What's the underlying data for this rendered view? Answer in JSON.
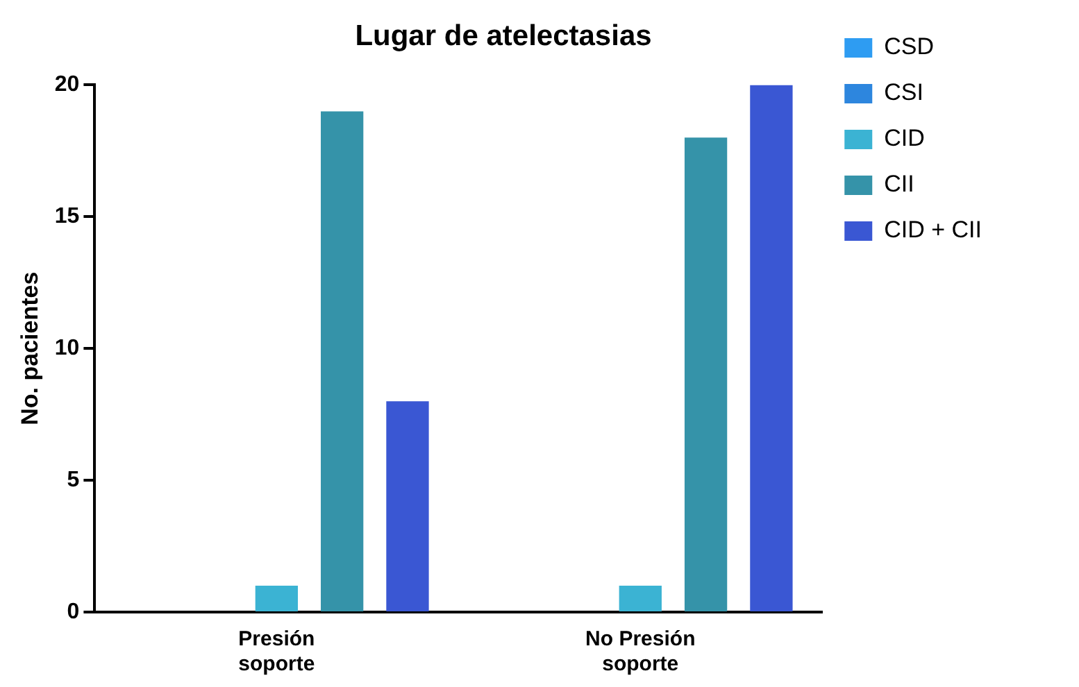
{
  "chart_data": {
    "type": "bar",
    "title": "Lugar de atelectasias",
    "ylabel": "No. pacientes",
    "categories": [
      "Presión soporte",
      "No Presión soporte"
    ],
    "series": [
      {
        "name": "CSD",
        "color": "#2e9cf2",
        "values": [
          0,
          0
        ]
      },
      {
        "name": "CSI",
        "color": "#2d86de",
        "values": [
          0,
          0
        ]
      },
      {
        "name": "CID",
        "color": "#3bb3d3",
        "values": [
          1,
          1
        ]
      },
      {
        "name": "CII",
        "color": "#3593a9",
        "values": [
          19,
          18
        ]
      },
      {
        "name": "CID + CII",
        "color": "#3a57d3",
        "values": [
          8,
          20
        ]
      }
    ],
    "ylim": [
      0,
      20
    ],
    "yticks": [
      0,
      5,
      10,
      15,
      20
    ],
    "grid": false,
    "legend": "right"
  }
}
